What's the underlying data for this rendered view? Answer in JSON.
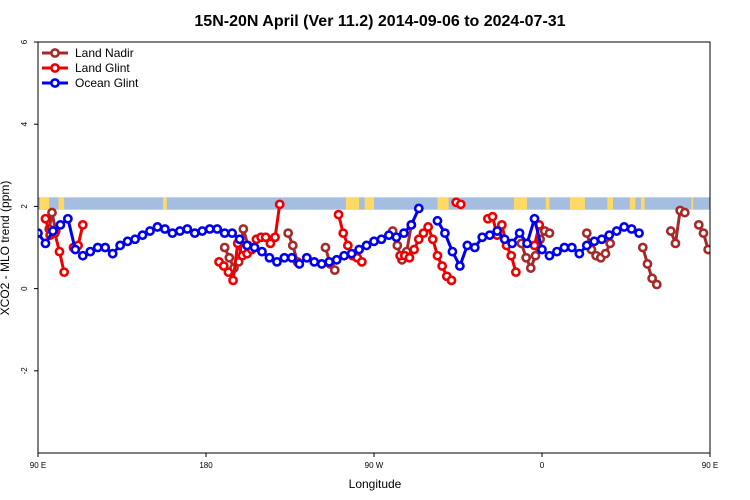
{
  "chart_data": {
    "type": "line",
    "title": "15N-20N April (Ver 11.2)   2014-09-06 to 2024-07-31",
    "xlabel": "Longitude",
    "ylabel": "XCO2 - MLO trend (ppm)",
    "xlim": [
      90,
      450
    ],
    "ylim": [
      -4,
      6
    ],
    "x_ticks": [
      {
        "value": 90,
        "label": "90 E"
      },
      {
        "value": 180,
        "label": "180"
      },
      {
        "value": 270,
        "label": "90 W"
      },
      {
        "value": 360,
        "label": "0"
      },
      {
        "value": 450,
        "label": "90 E"
      },
      {
        "value": 540,
        "label": "180"
      }
    ],
    "y_ticks": [
      {
        "value": -2,
        "label": "-2"
      },
      {
        "value": 0,
        "label": "0"
      },
      {
        "value": 2,
        "label": "2"
      },
      {
        "value": 4,
        "label": "4"
      },
      {
        "value": 6,
        "label": "6"
      }
    ],
    "legend_position": "top-left",
    "land_band": {
      "y_range": [
        1.92,
        2.22
      ],
      "land_color": "#ffd966",
      "ocean_color": "#a4bde0"
    },
    "series": [
      {
        "name": "Land Nadir",
        "color": "#a52a2a",
        "segments": [
          [
            [
              96,
              1.45
            ],
            [
              97.5,
              1.85
            ],
            [
              99.5,
              1.4
            ]
          ],
          [
            [
              190,
              1.0
            ],
            [
              192.5,
              0.75
            ],
            [
              195,
              0.5
            ],
            [
              197.5,
              0.65
            ],
            [
              200,
              1.45
            ],
            [
              202.5,
              1.05
            ]
          ],
          [
            [
              224,
              1.35
            ],
            [
              226.5,
              1.05
            ],
            [
              229,
              0.65
            ]
          ],
          [
            [
              244,
              1.0
            ],
            [
              246.5,
              0.6
            ],
            [
              249,
              0.45
            ]
          ],
          [
            [
              280,
              1.4
            ],
            [
              282.5,
              1.05
            ],
            [
              285,
              0.7
            ],
            [
              287.5,
              0.9
            ],
            [
              290,
              1.55
            ]
          ],
          [
            [
              349,
              1.1
            ],
            [
              351.5,
              0.75
            ],
            [
              354,
              0.5
            ],
            [
              356.5,
              0.8
            ],
            [
              359,
              1.2
            ],
            [
              361.5,
              1.4
            ],
            [
              364,
              1.35
            ]
          ],
          [
            [
              384,
              1.35
            ],
            [
              386.5,
              0.95
            ],
            [
              389,
              0.8
            ],
            [
              391.5,
              0.75
            ],
            [
              394,
              0.85
            ],
            [
              396.5,
              1.1
            ]
          ],
          [
            [
              414,
              1.0
            ],
            [
              416.5,
              0.6
            ],
            [
              419,
              0.25
            ],
            [
              421.5,
              0.1
            ]
          ],
          [
            [
              429,
              1.4
            ],
            [
              431.5,
              1.1
            ],
            [
              434,
              1.9
            ],
            [
              436.5,
              1.85
            ]
          ],
          [
            [
              444,
              1.55
            ],
            [
              446.5,
              1.35
            ],
            [
              449,
              0.95
            ]
          ]
        ]
      },
      {
        "name": "Land Glint",
        "color": "#ee0000",
        "segments": [
          [
            [
              94,
              1.7
            ],
            [
              96.5,
              1.3
            ],
            [
              99,
              1.35
            ],
            [
              101.5,
              0.9
            ],
            [
              104,
              0.4
            ]
          ],
          [
            [
              109,
              1.0
            ],
            [
              111.5,
              1.05
            ],
            [
              114,
              1.55
            ]
          ],
          [
            [
              187,
              0.65
            ],
            [
              189.5,
              0.55
            ],
            [
              192,
              0.4
            ],
            [
              194.5,
              0.2
            ],
            [
              197,
              1.1
            ],
            [
              199.5,
              0.8
            ],
            [
              202,
              0.85
            ],
            [
              204.5,
              0.95
            ],
            [
              207,
              1.2
            ],
            [
              209.5,
              1.25
            ],
            [
              212,
              1.25
            ],
            [
              214.5,
              1.1
            ],
            [
              217,
              1.25
            ],
            [
              219.5,
              2.05
            ]
          ],
          [
            [
              251,
              1.8
            ],
            [
              253.5,
              1.35
            ],
            [
              256,
              1.05
            ],
            [
              258.5,
              0.8
            ],
            [
              261,
              0.75
            ],
            [
              263.5,
              0.65
            ]
          ],
          [
            [
              284,
              0.8
            ],
            [
              286.5,
              0.8
            ],
            [
              289,
              0.75
            ],
            [
              291.5,
              0.95
            ],
            [
              294,
              1.2
            ],
            [
              296.5,
              1.35
            ],
            [
              299,
              1.5
            ],
            [
              301.5,
              1.2
            ],
            [
              304,
              0.8
            ],
            [
              306.5,
              0.55
            ],
            [
              309,
              0.3
            ],
            [
              311.5,
              0.2
            ]
          ],
          [
            [
              314,
              2.1
            ],
            [
              316.5,
              2.05
            ]
          ],
          [
            [
              331,
              1.7
            ],
            [
              333.5,
              1.75
            ],
            [
              336,
              1.3
            ],
            [
              338.5,
              1.55
            ],
            [
              341,
              1.05
            ],
            [
              343.5,
              0.8
            ],
            [
              346,
              0.4
            ]
          ],
          [
            [
              356,
              1.05
            ],
            [
              358.5,
              1.55
            ]
          ]
        ]
      },
      {
        "name": "Ocean Glint",
        "color": "#0000ee",
        "segments": [
          [
            [
              90,
              1.35
            ],
            [
              94,
              1.1
            ],
            [
              98,
              1.4
            ],
            [
              102,
              1.55
            ],
            [
              106,
              1.7
            ],
            [
              110,
              0.95
            ]
          ],
          [
            [
              114,
              0.8
            ],
            [
              118,
              0.9
            ],
            [
              122,
              1.0
            ],
            [
              126,
              1.0
            ],
            [
              130,
              0.85
            ],
            [
              134,
              1.05
            ],
            [
              138,
              1.15
            ],
            [
              142,
              1.2
            ],
            [
              146,
              1.3
            ],
            [
              150,
              1.4
            ],
            [
              154,
              1.5
            ],
            [
              158,
              1.45
            ],
            [
              162,
              1.35
            ],
            [
              166,
              1.4
            ],
            [
              170,
              1.45
            ],
            [
              174,
              1.35
            ],
            [
              178,
              1.4
            ],
            [
              182,
              1.45
            ],
            [
              186,
              1.45
            ],
            [
              190,
              1.35
            ],
            [
              194,
              1.35
            ],
            [
              198,
              1.2
            ],
            [
              202,
              1.05
            ],
            [
              206,
              1.0
            ],
            [
              210,
              0.9
            ],
            [
              214,
              0.75
            ],
            [
              218,
              0.65
            ],
            [
              222,
              0.75
            ],
            [
              226,
              0.75
            ],
            [
              230,
              0.6
            ],
            [
              234,
              0.75
            ],
            [
              238,
              0.65
            ],
            [
              242,
              0.6
            ],
            [
              246,
              0.65
            ],
            [
              250,
              0.7
            ],
            [
              254,
              0.8
            ],
            [
              258,
              0.85
            ],
            [
              262,
              0.95
            ],
            [
              266,
              1.05
            ],
            [
              270,
              1.15
            ],
            [
              274,
              1.2
            ],
            [
              278,
              1.3
            ],
            [
              282,
              1.25
            ],
            [
              286,
              1.35
            ],
            [
              290,
              1.55
            ],
            [
              294,
              1.95
            ]
          ],
          [
            [
              304,
              1.65
            ],
            [
              308,
              1.35
            ],
            [
              312,
              0.9
            ],
            [
              316,
              0.55
            ],
            [
              320,
              1.05
            ],
            [
              324,
              1.0
            ],
            [
              328,
              1.25
            ],
            [
              332,
              1.3
            ],
            [
              336,
              1.4
            ],
            [
              340,
              1.2
            ],
            [
              344,
              1.1
            ],
            [
              348,
              1.35
            ],
            [
              352,
              1.1
            ],
            [
              356,
              1.7
            ],
            [
              360,
              0.95
            ]
          ],
          [
            [
              364,
              0.8
            ],
            [
              368,
              0.9
            ],
            [
              372,
              1.0
            ],
            [
              376,
              1.0
            ],
            [
              380,
              0.85
            ],
            [
              384,
              1.05
            ],
            [
              388,
              1.15
            ],
            [
              392,
              1.2
            ],
            [
              396,
              1.3
            ],
            [
              400,
              1.4
            ],
            [
              404,
              1.5
            ],
            [
              408,
              1.45
            ],
            [
              412,
              1.35
            ]
          ]
        ]
      }
    ]
  }
}
